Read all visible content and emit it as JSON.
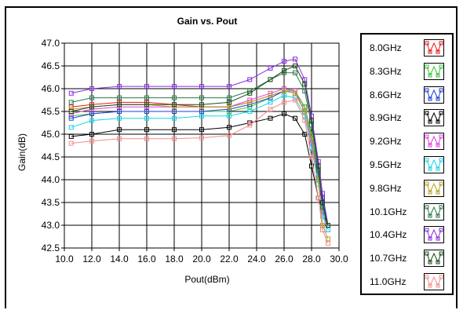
{
  "chart_data": {
    "type": "line",
    "title": "Gain vs. Pout",
    "xlabel": "Pout(dBm)",
    "ylabel": "Gain(dB)",
    "xlim": [
      10.0,
      30.0
    ],
    "ylim": [
      42.5,
      47.0
    ],
    "x_ticks": [
      "10.0",
      "12.0",
      "14.0",
      "16.0",
      "18.0",
      "20.0",
      "22.0",
      "24.0",
      "26.0",
      "28.0",
      "30.0"
    ],
    "y_ticks": [
      "42.5",
      "43.0",
      "43.5",
      "44.0",
      "44.5",
      "45.0",
      "45.5",
      "46.0",
      "46.5",
      "47.0"
    ],
    "grid": true,
    "legend_position": "right",
    "series": [
      {
        "name": "8.0GHz",
        "color": "#e41a1c",
        "points": [
          [
            10.5,
            45.6
          ],
          [
            12,
            45.65
          ],
          [
            14,
            45.7
          ],
          [
            16,
            45.7
          ],
          [
            18,
            45.65
          ],
          [
            20,
            45.6
          ],
          [
            22,
            45.6
          ],
          [
            23.5,
            45.7
          ],
          [
            25,
            45.85
          ],
          [
            26,
            45.95
          ],
          [
            26.8,
            45.95
          ],
          [
            27.5,
            45.6
          ],
          [
            28,
            45.0
          ],
          [
            28.5,
            44.2
          ],
          [
            28.8,
            43.4
          ],
          [
            29.2,
            43.0
          ]
        ]
      },
      {
        "name": "8.3GHz",
        "color": "#39c339",
        "points": [
          [
            10.5,
            45.4
          ],
          [
            12,
            45.45
          ],
          [
            14,
            45.5
          ],
          [
            16,
            45.5
          ],
          [
            18,
            45.5
          ],
          [
            20,
            45.5
          ],
          [
            22,
            45.5
          ],
          [
            23.5,
            45.6
          ],
          [
            25,
            45.8
          ],
          [
            26,
            45.95
          ],
          [
            26.8,
            45.95
          ],
          [
            27.5,
            45.6
          ],
          [
            28,
            45.0
          ],
          [
            28.5,
            44.2
          ],
          [
            28.8,
            43.5
          ],
          [
            29.2,
            43.0
          ]
        ]
      },
      {
        "name": "8.6GHz",
        "color": "#1f3fd8",
        "points": [
          [
            10.5,
            45.35
          ],
          [
            12,
            45.45
          ],
          [
            14,
            45.5
          ],
          [
            16,
            45.5
          ],
          [
            18,
            45.5
          ],
          [
            20,
            45.5
          ],
          [
            22,
            45.55
          ],
          [
            23.5,
            45.65
          ],
          [
            25,
            45.8
          ],
          [
            26,
            45.95
          ],
          [
            26.8,
            45.9
          ],
          [
            27.5,
            45.5
          ],
          [
            28,
            44.9
          ],
          [
            28.5,
            44.1
          ],
          [
            28.8,
            43.6
          ],
          [
            29.2,
            43.0
          ]
        ]
      },
      {
        "name": "8.9GHz",
        "color": "#000000",
        "points": [
          [
            10.5,
            44.95
          ],
          [
            12,
            45.0
          ],
          [
            14,
            45.1
          ],
          [
            16,
            45.1
          ],
          [
            18,
            45.1
          ],
          [
            20,
            45.1
          ],
          [
            22,
            45.15
          ],
          [
            23.5,
            45.25
          ],
          [
            25,
            45.35
          ],
          [
            26,
            45.45
          ],
          [
            26.8,
            45.35
          ],
          [
            27.5,
            45.0
          ],
          [
            28,
            44.3
          ],
          [
            28.5,
            43.6
          ],
          [
            28.8,
            43.3
          ],
          [
            29.2,
            43.0
          ]
        ]
      },
      {
        "name": "9.2GHz",
        "color": "#e040e0",
        "points": [
          [
            10.5,
            45.45
          ],
          [
            12,
            45.55
          ],
          [
            14,
            45.6
          ],
          [
            16,
            45.6
          ],
          [
            18,
            45.6
          ],
          [
            20,
            45.6
          ],
          [
            22,
            45.6
          ],
          [
            23.5,
            45.75
          ],
          [
            25,
            45.9
          ],
          [
            26,
            46.0
          ],
          [
            26.8,
            45.95
          ],
          [
            27.5,
            45.5
          ],
          [
            28,
            44.8
          ],
          [
            28.5,
            44.0
          ],
          [
            28.8,
            43.3
          ],
          [
            29.2,
            42.9
          ]
        ]
      },
      {
        "name": "9.5GHz",
        "color": "#17d6e6",
        "points": [
          [
            10.5,
            45.15
          ],
          [
            12,
            45.3
          ],
          [
            14,
            45.35
          ],
          [
            16,
            45.35
          ],
          [
            18,
            45.35
          ],
          [
            20,
            45.4
          ],
          [
            22,
            45.4
          ],
          [
            23.5,
            45.5
          ],
          [
            25,
            45.7
          ],
          [
            26,
            45.85
          ],
          [
            26.8,
            45.8
          ],
          [
            27.5,
            45.4
          ],
          [
            28,
            44.7
          ],
          [
            28.5,
            43.9
          ],
          [
            28.8,
            43.2
          ],
          [
            29.2,
            42.9
          ]
        ]
      },
      {
        "name": "9.8GHz",
        "color": "#b8a020",
        "points": [
          [
            10.5,
            45.55
          ],
          [
            12,
            45.6
          ],
          [
            14,
            45.65
          ],
          [
            16,
            45.65
          ],
          [
            18,
            45.6
          ],
          [
            20,
            45.6
          ],
          [
            22,
            45.6
          ],
          [
            23.5,
            45.7
          ],
          [
            25,
            45.85
          ],
          [
            26,
            45.95
          ],
          [
            26.8,
            45.9
          ],
          [
            27.5,
            45.5
          ],
          [
            28,
            44.9
          ],
          [
            28.5,
            44.0
          ],
          [
            28.8,
            43.0
          ],
          [
            29.2,
            42.7
          ]
        ]
      },
      {
        "name": "10.1GHz",
        "color": "#2a7a4a",
        "points": [
          [
            10.5,
            45.7
          ],
          [
            12,
            45.8
          ],
          [
            14,
            45.8
          ],
          [
            16,
            45.8
          ],
          [
            18,
            45.8
          ],
          [
            20,
            45.8
          ],
          [
            22,
            45.8
          ],
          [
            23.5,
            45.95
          ],
          [
            25,
            46.2
          ],
          [
            26,
            46.35
          ],
          [
            26.8,
            46.35
          ],
          [
            27.5,
            45.95
          ],
          [
            28,
            45.2
          ],
          [
            28.5,
            44.2
          ],
          [
            28.8,
            43.4
          ],
          [
            29.2,
            43.0
          ]
        ]
      },
      {
        "name": "10.4GHz",
        "color": "#8a2be2",
        "points": [
          [
            10.5,
            45.9
          ],
          [
            12,
            46.0
          ],
          [
            14,
            46.05
          ],
          [
            16,
            46.05
          ],
          [
            18,
            46.05
          ],
          [
            20,
            46.05
          ],
          [
            22,
            46.05
          ],
          [
            23.5,
            46.2
          ],
          [
            25,
            46.45
          ],
          [
            26,
            46.6
          ],
          [
            26.8,
            46.65
          ],
          [
            27.5,
            46.2
          ],
          [
            28,
            45.4
          ],
          [
            28.5,
            44.4
          ],
          [
            28.8,
            43.7
          ],
          [
            29.2,
            43.0
          ]
        ]
      },
      {
        "name": "10.7GHz",
        "color": "#1a4a1a",
        "points": [
          [
            10.5,
            45.5
          ],
          [
            12,
            45.6
          ],
          [
            14,
            45.65
          ],
          [
            16,
            45.65
          ],
          [
            18,
            45.65
          ],
          [
            20,
            45.65
          ],
          [
            22,
            45.7
          ],
          [
            23.5,
            45.9
          ],
          [
            25,
            46.2
          ],
          [
            26,
            46.4
          ],
          [
            26.8,
            46.5
          ],
          [
            27.5,
            46.1
          ],
          [
            28,
            45.3
          ],
          [
            28.5,
            44.3
          ],
          [
            28.8,
            43.5
          ],
          [
            29.2,
            43.0
          ]
        ]
      },
      {
        "name": "11.0GHz",
        "color": "#f28c8c",
        "points": [
          [
            10.5,
            44.8
          ],
          [
            12,
            44.85
          ],
          [
            14,
            44.9
          ],
          [
            16,
            44.9
          ],
          [
            18,
            44.9
          ],
          [
            20,
            44.92
          ],
          [
            22,
            44.97
          ],
          [
            23.5,
            45.2
          ],
          [
            25,
            45.55
          ],
          [
            26,
            45.7
          ],
          [
            26.8,
            45.75
          ],
          [
            27.5,
            45.3
          ],
          [
            28,
            44.5
          ],
          [
            28.5,
            43.6
          ],
          [
            28.8,
            42.9
          ],
          [
            29.2,
            42.6
          ]
        ]
      }
    ]
  }
}
